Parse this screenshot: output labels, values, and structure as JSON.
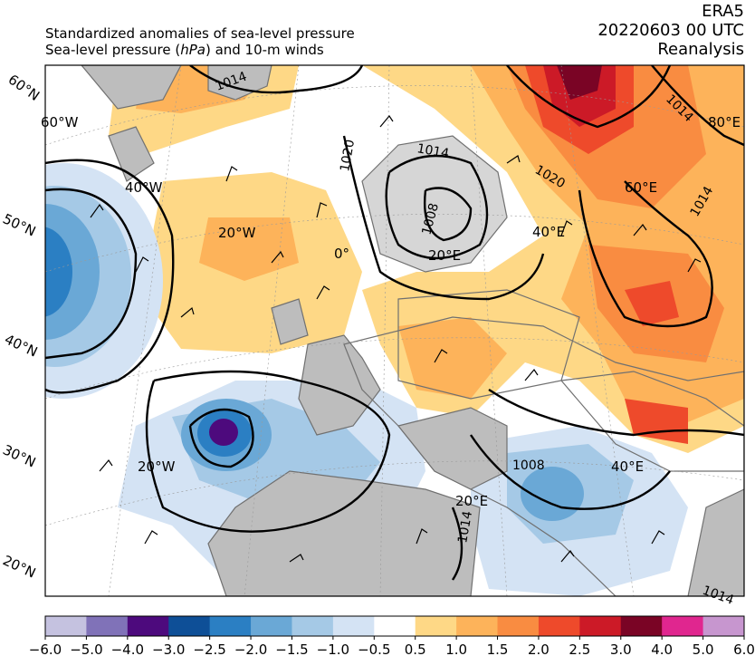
{
  "header": {
    "line1": "Standardized anomalies of sea-level pressure",
    "line2_prefix": "Sea-level pressure (",
    "line2_unit": "hPa",
    "line2_suffix": ") and 10-m winds",
    "right_line1": "ERA5",
    "right_line2": "20220603 00 UTC",
    "right_line3": "Reanalysis"
  },
  "map": {
    "lat_labels": [
      "60°N",
      "50°N",
      "40°N",
      "30°N",
      "20°N"
    ],
    "lon_labels": [
      "60°W",
      "40°W",
      "20°W",
      "0°",
      "20°E",
      "40°E",
      "60°E",
      "80°E",
      "20°W",
      "20°E",
      "40°E"
    ],
    "isobar_labels": [
      "1020",
      "1014",
      "1008",
      "1020",
      "1014",
      "1014",
      "1008",
      "1014",
      "1014",
      "1014"
    ],
    "colors": {
      "land": "#bdbdbd",
      "coast": "#707070",
      "isobar": "#000000"
    }
  },
  "colorbar": {
    "ticks": [
      "−6.0",
      "−5.0",
      "−4.0",
      "−3.0",
      "−2.5",
      "−2.0",
      "−1.5",
      "−1.0",
      "−0.5",
      "0.5",
      "1.0",
      "1.5",
      "2.0",
      "2.5",
      "3.0",
      "4.0",
      "5.0",
      "6.0"
    ],
    "colors": [
      "#c5c2e0",
      "#8072b8",
      "#4d0a7d",
      "#0e4f97",
      "#2b7fc3",
      "#6aa8d6",
      "#a5c9e6",
      "#d4e3f4",
      "#ffffff",
      "#fed886",
      "#fdb35a",
      "#f98c41",
      "#ee4a2b",
      "#cc1a27",
      "#7a0425",
      "#e0268f",
      "#c796cf"
    ]
  }
}
